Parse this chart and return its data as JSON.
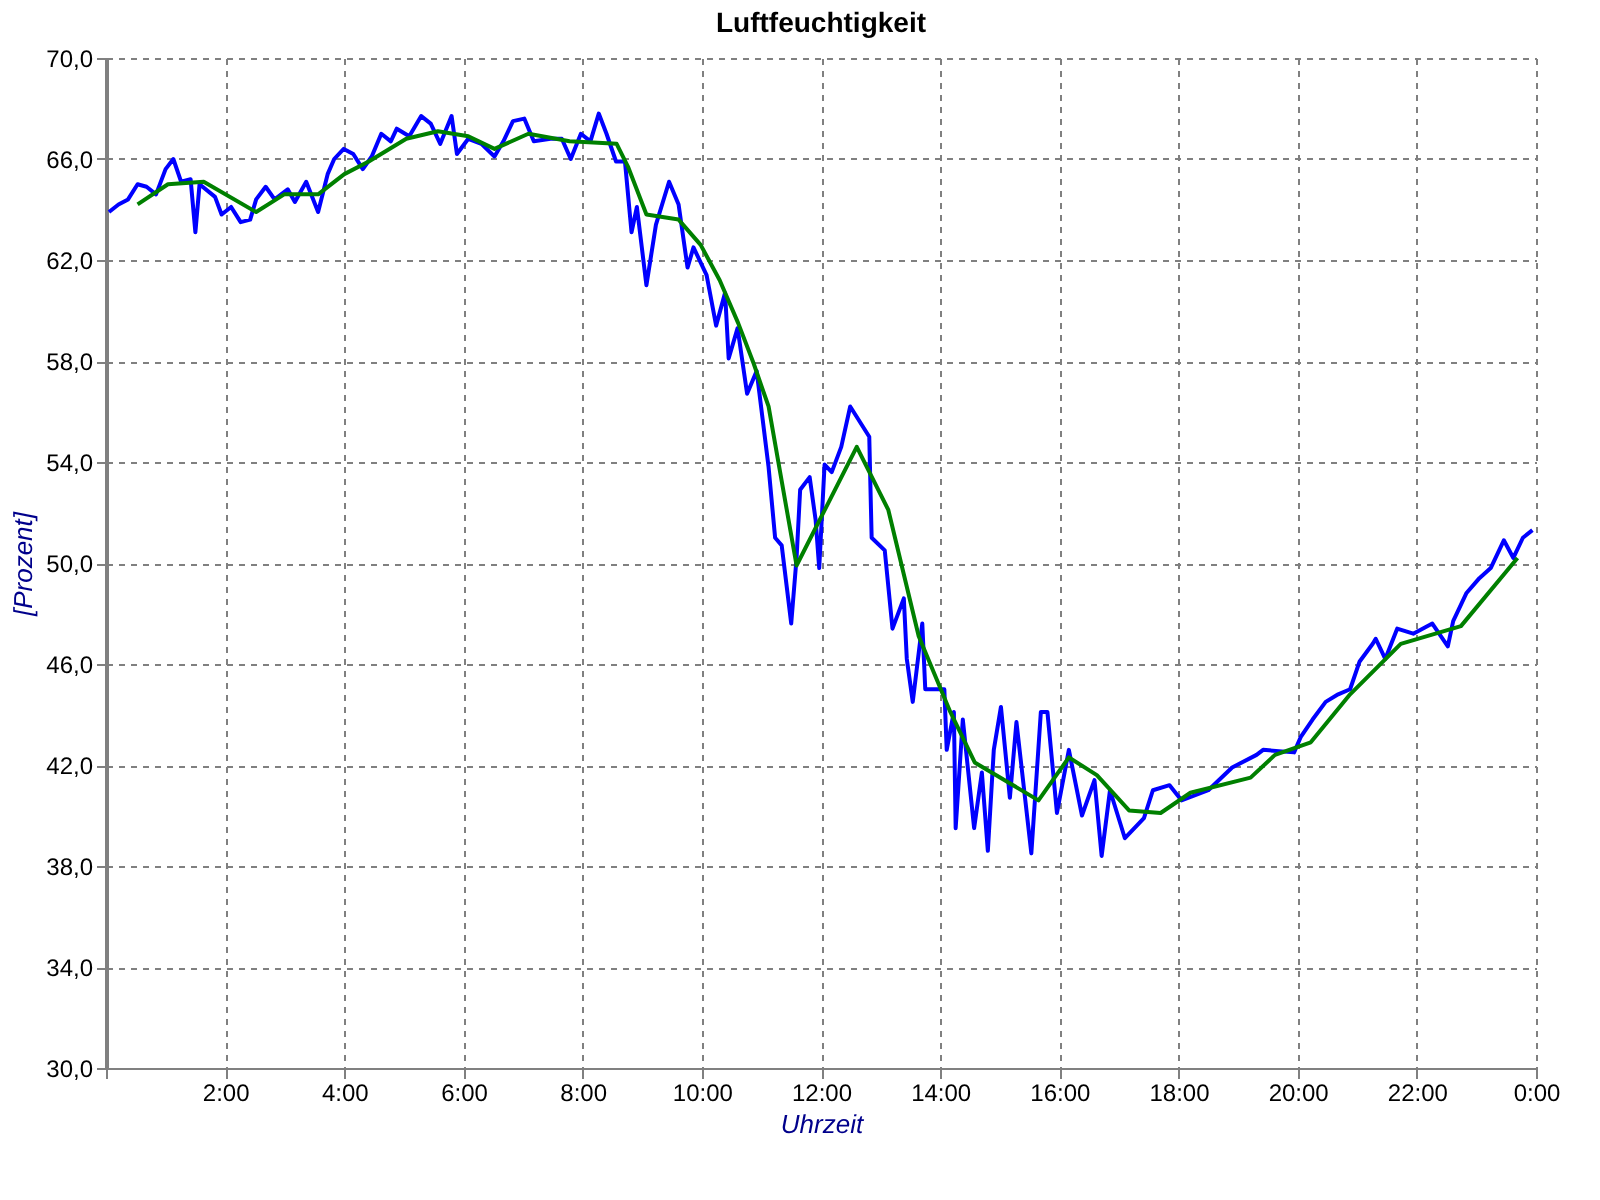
{
  "chart_data": {
    "type": "line",
    "title": "Luftfeuchtigkeit",
    "xlabel": "Uhrzeit",
    "ylabel": "[Prozent]",
    "xlim": [
      0,
      24
    ],
    "ylim": [
      30,
      70
    ],
    "xticks": [
      {
        "value": 0,
        "label": null
      },
      {
        "value": 2,
        "label": "2:00"
      },
      {
        "value": 4,
        "label": "4:00"
      },
      {
        "value": 6,
        "label": "6:00"
      },
      {
        "value": 8,
        "label": "8:00"
      },
      {
        "value": 10,
        "label": "10:00"
      },
      {
        "value": 12,
        "label": "12:00"
      },
      {
        "value": 14,
        "label": "14:00"
      },
      {
        "value": 16,
        "label": "16:00"
      },
      {
        "value": 18,
        "label": "18:00"
      },
      {
        "value": 20,
        "label": "20:00"
      },
      {
        "value": 22,
        "label": "22:00"
      },
      {
        "value": 24,
        "label": "0:00"
      }
    ],
    "yticks": [
      {
        "value": 30,
        "label": "30,0"
      },
      {
        "value": 34,
        "label": "34,0"
      },
      {
        "value": 38,
        "label": "38,0"
      },
      {
        "value": 42,
        "label": "42,0"
      },
      {
        "value": 46,
        "label": "46,0"
      },
      {
        "value": 50,
        "label": "50,0"
      },
      {
        "value": 54,
        "label": "54,0"
      },
      {
        "value": 58,
        "label": "58,0"
      },
      {
        "value": 62,
        "label": "62,0"
      },
      {
        "value": 66,
        "label": "66,0"
      },
      {
        "value": 70,
        "label": "70,0"
      }
    ],
    "grid": true,
    "marker": "none",
    "line_style": "solid",
    "series": [
      {
        "color": "#0000ff",
        "x": [
          0.05,
          0.21,
          0.37,
          0.53,
          0.68,
          0.84,
          1.0,
          1.13,
          1.26,
          1.42,
          1.5,
          1.57,
          1.83,
          1.94,
          2.1,
          2.26,
          2.42,
          2.52,
          2.68,
          2.83,
          3.05,
          3.17,
          3.36,
          3.56,
          3.72,
          3.83,
          3.99,
          4.15,
          4.31,
          4.46,
          4.62,
          4.78,
          4.88,
          5.09,
          5.29,
          5.45,
          5.61,
          5.8,
          5.89,
          6.08,
          6.3,
          6.52,
          6.67,
          6.83,
          7.02,
          7.18,
          7.46,
          7.65,
          7.8,
          7.97,
          8.13,
          8.27,
          8.4,
          8.56,
          8.71,
          8.82,
          8.91,
          9.07,
          9.23,
          9.45,
          9.61,
          9.76,
          9.86,
          10.08,
          10.24,
          10.39,
          10.45,
          10.6,
          10.76,
          10.92,
          11.02,
          11.12,
          11.23,
          11.34,
          11.5,
          11.59,
          11.65,
          11.81,
          11.91,
          11.97,
          12.06,
          12.18,
          12.34,
          12.49,
          12.81,
          12.85,
          13.07,
          13.2,
          13.39,
          13.44,
          13.54,
          13.7,
          13.75,
          14.07,
          14.11,
          14.23,
          14.26,
          14.38,
          14.57,
          14.7,
          14.8,
          14.9,
          15.02,
          15.17,
          15.28,
          15.53,
          15.69,
          15.8,
          15.96,
          16.16,
          16.38,
          16.59,
          16.71,
          16.85,
          17.1,
          17.42,
          17.57,
          17.85,
          18.05,
          18.5,
          18.9,
          19.31,
          19.42,
          19.94,
          20.05,
          20.25,
          20.47,
          20.68,
          20.88,
          21.04,
          21.26,
          21.31,
          21.47,
          21.67,
          21.94,
          22.26,
          22.52,
          22.61,
          22.83,
          23.05,
          23.24,
          23.46,
          23.62,
          23.78,
          23.94
        ],
        "values": [
          63.9,
          64.2,
          64.4,
          65.0,
          64.9,
          64.6,
          65.6,
          66.0,
          65.1,
          65.2,
          63.1,
          65.0,
          64.5,
          63.8,
          64.1,
          63.5,
          63.6,
          64.4,
          64.9,
          64.4,
          64.8,
          64.3,
          65.1,
          63.9,
          65.4,
          66.0,
          66.4,
          66.2,
          65.6,
          66.1,
          67.0,
          66.7,
          67.2,
          66.9,
          67.7,
          67.4,
          66.6,
          67.7,
          66.2,
          66.8,
          66.6,
          66.1,
          66.7,
          67.5,
          67.6,
          66.7,
          66.8,
          66.8,
          66.0,
          67.0,
          66.7,
          67.8,
          67.0,
          65.9,
          65.9,
          63.1,
          64.1,
          61.0,
          63.4,
          65.1,
          64.2,
          61.7,
          62.5,
          61.4,
          59.4,
          60.7,
          58.1,
          59.3,
          56.7,
          57.6,
          55.7,
          53.8,
          51.0,
          50.7,
          47.6,
          50.2,
          52.9,
          53.4,
          51.7,
          49.8,
          53.9,
          53.6,
          54.6,
          56.2,
          55.0,
          51.0,
          50.5,
          47.4,
          48.6,
          46.2,
          44.5,
          47.6,
          45.0,
          45.0,
          42.6,
          44.1,
          39.5,
          43.8,
          39.5,
          41.7,
          38.6,
          42.6,
          44.3,
          40.7,
          43.7,
          38.5,
          44.1,
          44.1,
          40.1,
          42.6,
          40.0,
          41.4,
          38.4,
          41.0,
          39.1,
          39.9,
          41.0,
          41.2,
          40.6,
          41.0,
          41.9,
          42.4,
          42.6,
          42.5,
          43.1,
          43.8,
          44.5,
          44.8,
          45.0,
          46.1,
          46.8,
          47.0,
          46.2,
          47.4,
          47.2,
          47.6,
          46.7,
          47.7,
          48.8,
          49.4,
          49.8,
          50.9,
          50.2,
          51.0,
          51.3
        ]
      },
      {
        "color": "#008000",
        "x": [
          0.53,
          1.04,
          1.64,
          2.52,
          2.99,
          3.56,
          4.0,
          4.41,
          5.04,
          5.57,
          6.08,
          6.52,
          7.09,
          7.78,
          8.57,
          8.76,
          9.07,
          9.61,
          9.98,
          10.3,
          10.61,
          10.87,
          11.12,
          11.59,
          12.6,
          13.13,
          13.64,
          14.17,
          14.58,
          15.65,
          16.16,
          16.63,
          17.17,
          17.7,
          18.2,
          19.21,
          19.62,
          20.22,
          20.88,
          21.73,
          22.74,
          23.69
        ],
        "values": [
          64.2,
          65.0,
          65.1,
          63.9,
          64.6,
          64.6,
          65.4,
          65.9,
          66.8,
          67.1,
          66.9,
          66.4,
          67.0,
          66.7,
          66.6,
          65.7,
          63.8,
          63.6,
          62.6,
          61.2,
          59.5,
          57.9,
          56.2,
          49.9,
          54.6,
          52.1,
          47.1,
          44.1,
          42.1,
          40.6,
          42.3,
          41.6,
          40.2,
          40.1,
          40.9,
          41.5,
          42.4,
          42.9,
          44.8,
          46.8,
          47.5,
          50.2
        ]
      }
    ]
  }
}
